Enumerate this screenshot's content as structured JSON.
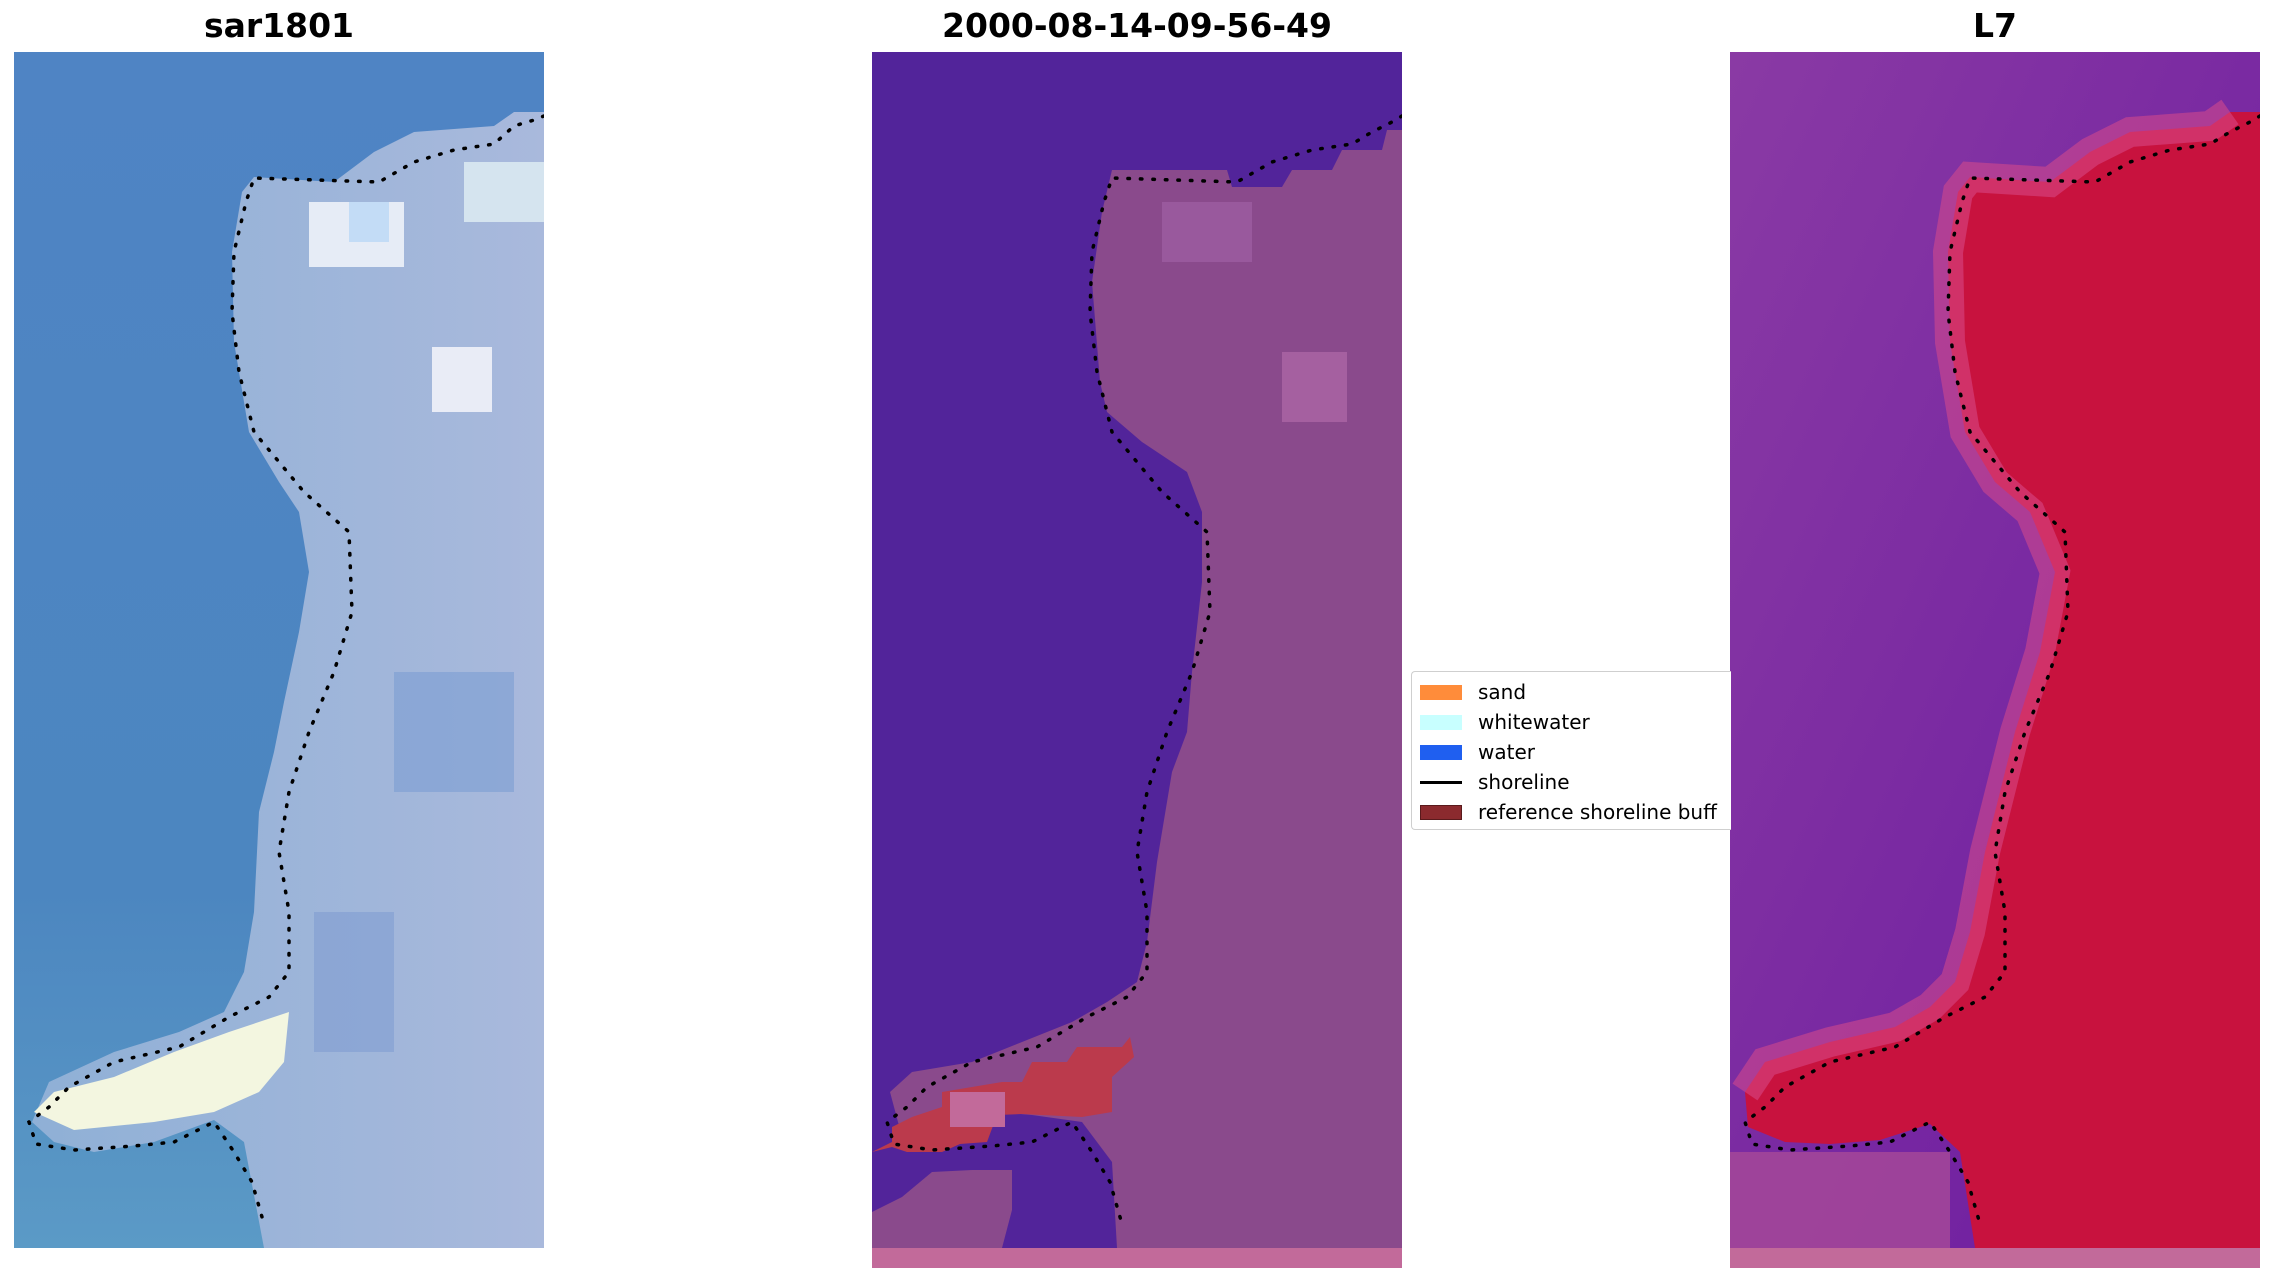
{
  "panels": [
    {
      "title": "sar1801"
    },
    {
      "title": "2000-08-14-09-56-49"
    },
    {
      "title": "L7"
    }
  ],
  "legend": {
    "items": [
      {
        "label": "sand",
        "color": "#ff8c3a",
        "kind": "patch"
      },
      {
        "label": "whitewater",
        "color": "#c8ffff",
        "kind": "patch"
      },
      {
        "label": "water",
        "color": "#1f5ff0",
        "kind": "patch"
      },
      {
        "label": "shoreline",
        "color": "#000000",
        "kind": "line"
      },
      {
        "label": "reference shoreline buff",
        "color": "#8b2a2e",
        "kind": "patch"
      }
    ]
  },
  "colors": {
    "rgb_water": "#4f86c2",
    "rgb_land": "#9fb4d6",
    "rgb_sand": "#f4f6e4",
    "class_water": "#52249a",
    "class_land": "#8a4a8c",
    "class_buffer": "#bb3a4c",
    "mndwi_water": "#7a28a8",
    "mndwi_land": "#c8123e"
  }
}
